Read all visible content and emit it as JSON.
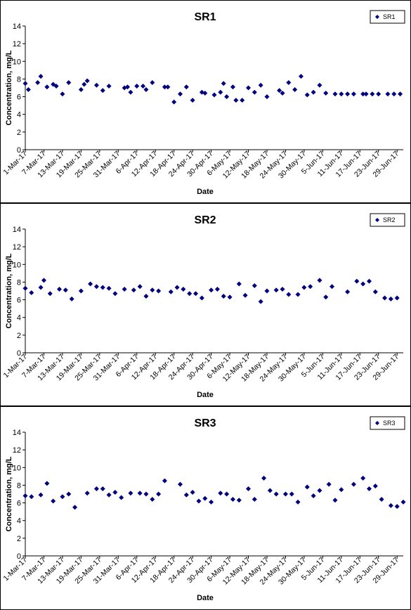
{
  "chart_data": [
    {
      "type": "scatter",
      "title": "SR1",
      "xlabel": "Date",
      "ylabel": "Concentration, mg/L",
      "ylim": [
        0,
        14
      ],
      "yticks": [
        "0",
        "2",
        "4",
        "6",
        "8",
        "10",
        "12",
        "14"
      ],
      "xlim": [
        "2017-03-01",
        "2017-07-01"
      ],
      "xticks": [
        "1-Mar-17",
        "7-Mar-17",
        "13-Mar-17",
        "19-Mar-17",
        "25-Mar-17",
        "31-Mar-17",
        "6-Apr-17",
        "12-Apr-17",
        "18-Apr-17",
        "24-Apr-17",
        "30-Apr-17",
        "6-May-17",
        "12-May-17",
        "18-May-17",
        "24-May-17",
        "30-May-17",
        "5-Jun-17",
        "11-Jun-17",
        "17-Jun-17",
        "23-Jun-17",
        "29-Jun-17"
      ],
      "legend_position": "top-right",
      "marker_color": "#000080",
      "series": [
        {
          "name": "SR1",
          "x": [
            "2017-03-01",
            "2017-03-02",
            "2017-03-05",
            "2017-03-06",
            "2017-03-08",
            "2017-03-10",
            "2017-03-11",
            "2017-03-13",
            "2017-03-15",
            "2017-03-19",
            "2017-03-20",
            "2017-03-21",
            "2017-03-24",
            "2017-03-26",
            "2017-03-28",
            "2017-04-02",
            "2017-04-03",
            "2017-04-04",
            "2017-04-06",
            "2017-04-08",
            "2017-04-09",
            "2017-04-11",
            "2017-04-15",
            "2017-04-16",
            "2017-04-18",
            "2017-04-20",
            "2017-04-22",
            "2017-04-24",
            "2017-04-27",
            "2017-04-28",
            "2017-05-01",
            "2017-05-03",
            "2017-05-04",
            "2017-05-05",
            "2017-05-07",
            "2017-05-08",
            "2017-05-10",
            "2017-05-12",
            "2017-05-14",
            "2017-05-16",
            "2017-05-18",
            "2017-05-22",
            "2017-05-23",
            "2017-05-25",
            "2017-05-27",
            "2017-05-29",
            "2017-05-31",
            "2017-06-02",
            "2017-06-04",
            "2017-06-06",
            "2017-06-09",
            "2017-06-11",
            "2017-06-13",
            "2017-06-15",
            "2017-06-18",
            "2017-06-19",
            "2017-06-21",
            "2017-06-23",
            "2017-06-26",
            "2017-06-28",
            "2017-06-30"
          ],
          "y": [
            7.5,
            6.8,
            7.6,
            8.3,
            7.1,
            7.4,
            7.2,
            6.3,
            7.6,
            6.8,
            7.4,
            7.8,
            7.3,
            6.7,
            7.2,
            7.0,
            7.1,
            6.5,
            7.2,
            7.2,
            6.8,
            7.6,
            7.1,
            7.1,
            5.4,
            6.3,
            7.1,
            5.6,
            6.5,
            6.4,
            6.2,
            6.5,
            7.5,
            6.0,
            7.1,
            5.6,
            5.6,
            7.0,
            6.5,
            7.3,
            6.0,
            6.7,
            6.4,
            7.6,
            6.8,
            8.3,
            6.2,
            6.5,
            7.3,
            6.4,
            6.3,
            6.3,
            6.3,
            6.3,
            6.3,
            6.3,
            6.3,
            6.3,
            6.3,
            6.3,
            6.3
          ]
        }
      ]
    },
    {
      "type": "scatter",
      "title": "SR2",
      "xlabel": "Date",
      "ylabel": "Concentration, mg/L",
      "ylim": [
        0,
        14
      ],
      "yticks": [
        "0",
        "2",
        "4",
        "6",
        "8",
        "10",
        "12",
        "14"
      ],
      "xlim": [
        "2017-03-01",
        "2017-07-01"
      ],
      "xticks": [
        "1-Mar-17",
        "7-Mar-17",
        "13-Mar-17",
        "19-Mar-17",
        "25-Mar-17",
        "31-Mar-17",
        "6-Apr-17",
        "12-Apr-17",
        "18-Apr-17",
        "24-Apr-17",
        "30-Apr-17",
        "6-May-17",
        "12-May-17",
        "18-May-17",
        "24-May-17",
        "30-May-17",
        "5-Jun-17",
        "11-Jun-17",
        "17-Jun-17",
        "23-Jun-17",
        "29-Jun-17"
      ],
      "legend_position": "top-right",
      "marker_color": "#000080",
      "series": [
        {
          "name": "SR2",
          "x": [
            "2017-03-01",
            "2017-03-03",
            "2017-03-06",
            "2017-03-07",
            "2017-03-09",
            "2017-03-12",
            "2017-03-14",
            "2017-03-16",
            "2017-03-19",
            "2017-03-22",
            "2017-03-24",
            "2017-03-26",
            "2017-03-28",
            "2017-03-30",
            "2017-04-02",
            "2017-04-05",
            "2017-04-07",
            "2017-04-09",
            "2017-04-11",
            "2017-04-13",
            "2017-04-17",
            "2017-04-19",
            "2017-04-21",
            "2017-04-23",
            "2017-04-25",
            "2017-04-27",
            "2017-04-30",
            "2017-05-02",
            "2017-05-04",
            "2017-05-06",
            "2017-05-09",
            "2017-05-11",
            "2017-05-14",
            "2017-05-16",
            "2017-05-18",
            "2017-05-21",
            "2017-05-23",
            "2017-05-25",
            "2017-05-28",
            "2017-05-30",
            "2017-06-01",
            "2017-06-04",
            "2017-06-06",
            "2017-06-08",
            "2017-06-13",
            "2017-06-16",
            "2017-06-18",
            "2017-06-20",
            "2017-06-22",
            "2017-06-25",
            "2017-06-27",
            "2017-06-29"
          ],
          "y": [
            7.3,
            6.8,
            7.4,
            8.2,
            6.7,
            7.2,
            7.1,
            6.1,
            7.0,
            7.8,
            7.5,
            7.4,
            7.3,
            6.7,
            7.2,
            7.1,
            7.5,
            6.4,
            7.1,
            7.0,
            6.9,
            7.4,
            7.2,
            6.7,
            6.7,
            6.2,
            7.1,
            7.2,
            6.4,
            6.3,
            7.8,
            6.5,
            7.6,
            5.8,
            7.0,
            7.1,
            7.2,
            6.6,
            6.6,
            7.4,
            7.5,
            8.2,
            6.3,
            7.5,
            6.9,
            8.1,
            7.8,
            8.1,
            6.9,
            6.2,
            6.1,
            6.2
          ]
        }
      ]
    },
    {
      "type": "scatter",
      "title": "SR3",
      "xlabel": "Date",
      "ylabel": "Concentration, mg/L",
      "ylim": [
        0,
        14
      ],
      "yticks": [
        "0",
        "2",
        "4",
        "6",
        "8",
        "10",
        "12",
        "14"
      ],
      "xlim": [
        "2017-03-01",
        "2017-07-01"
      ],
      "xticks": [
        "1-Mar-17",
        "7-Mar-17",
        "13-Mar-17",
        "19-Mar-17",
        "25-Mar-17",
        "31-Mar-17",
        "6-Apr-17",
        "12-Apr-17",
        "18-Apr-17",
        "24-Apr-17",
        "30-Apr-17",
        "6-May-17",
        "12-May-17",
        "18-May-17",
        "24-May-17",
        "30-May-17",
        "5-Jun-17",
        "11-Jun-17",
        "17-Jun-17",
        "23-Jun-17",
        "29-Jun-17"
      ],
      "legend_position": "top-right",
      "marker_color": "#000080",
      "series": [
        {
          "name": "SR3",
          "x": [
            "2017-03-01",
            "2017-03-03",
            "2017-03-06",
            "2017-03-08",
            "2017-03-10",
            "2017-03-13",
            "2017-03-15",
            "2017-03-17",
            "2017-03-21",
            "2017-03-24",
            "2017-03-26",
            "2017-03-28",
            "2017-03-30",
            "2017-04-01",
            "2017-04-04",
            "2017-04-07",
            "2017-04-09",
            "2017-04-11",
            "2017-04-13",
            "2017-04-15",
            "2017-04-20",
            "2017-04-22",
            "2017-04-24",
            "2017-04-26",
            "2017-04-28",
            "2017-04-30",
            "2017-05-03",
            "2017-05-05",
            "2017-05-07",
            "2017-05-09",
            "2017-05-12",
            "2017-05-14",
            "2017-05-17",
            "2017-05-19",
            "2017-05-21",
            "2017-05-24",
            "2017-05-26",
            "2017-05-28",
            "2017-05-31",
            "2017-06-02",
            "2017-06-04",
            "2017-06-07",
            "2017-06-09",
            "2017-06-11",
            "2017-06-15",
            "2017-06-18",
            "2017-06-20",
            "2017-06-22",
            "2017-06-24",
            "2017-06-27",
            "2017-06-29",
            "2017-07-01"
          ],
          "y": [
            6.8,
            6.7,
            6.9,
            8.2,
            6.2,
            6.7,
            7.0,
            5.5,
            7.1,
            7.6,
            7.6,
            6.9,
            7.2,
            6.6,
            7.1,
            7.1,
            7.0,
            6.4,
            7.0,
            8.5,
            8.1,
            6.9,
            7.2,
            6.2,
            6.5,
            6.1,
            7.1,
            7.0,
            6.4,
            6.3,
            7.6,
            6.4,
            8.8,
            7.4,
            7.0,
            7.0,
            7.0,
            6.1,
            7.8,
            6.8,
            7.4,
            8.1,
            6.3,
            7.5,
            8.1,
            8.8,
            7.6,
            7.9,
            6.4,
            5.7,
            5.6,
            6.1
          ]
        }
      ]
    }
  ]
}
